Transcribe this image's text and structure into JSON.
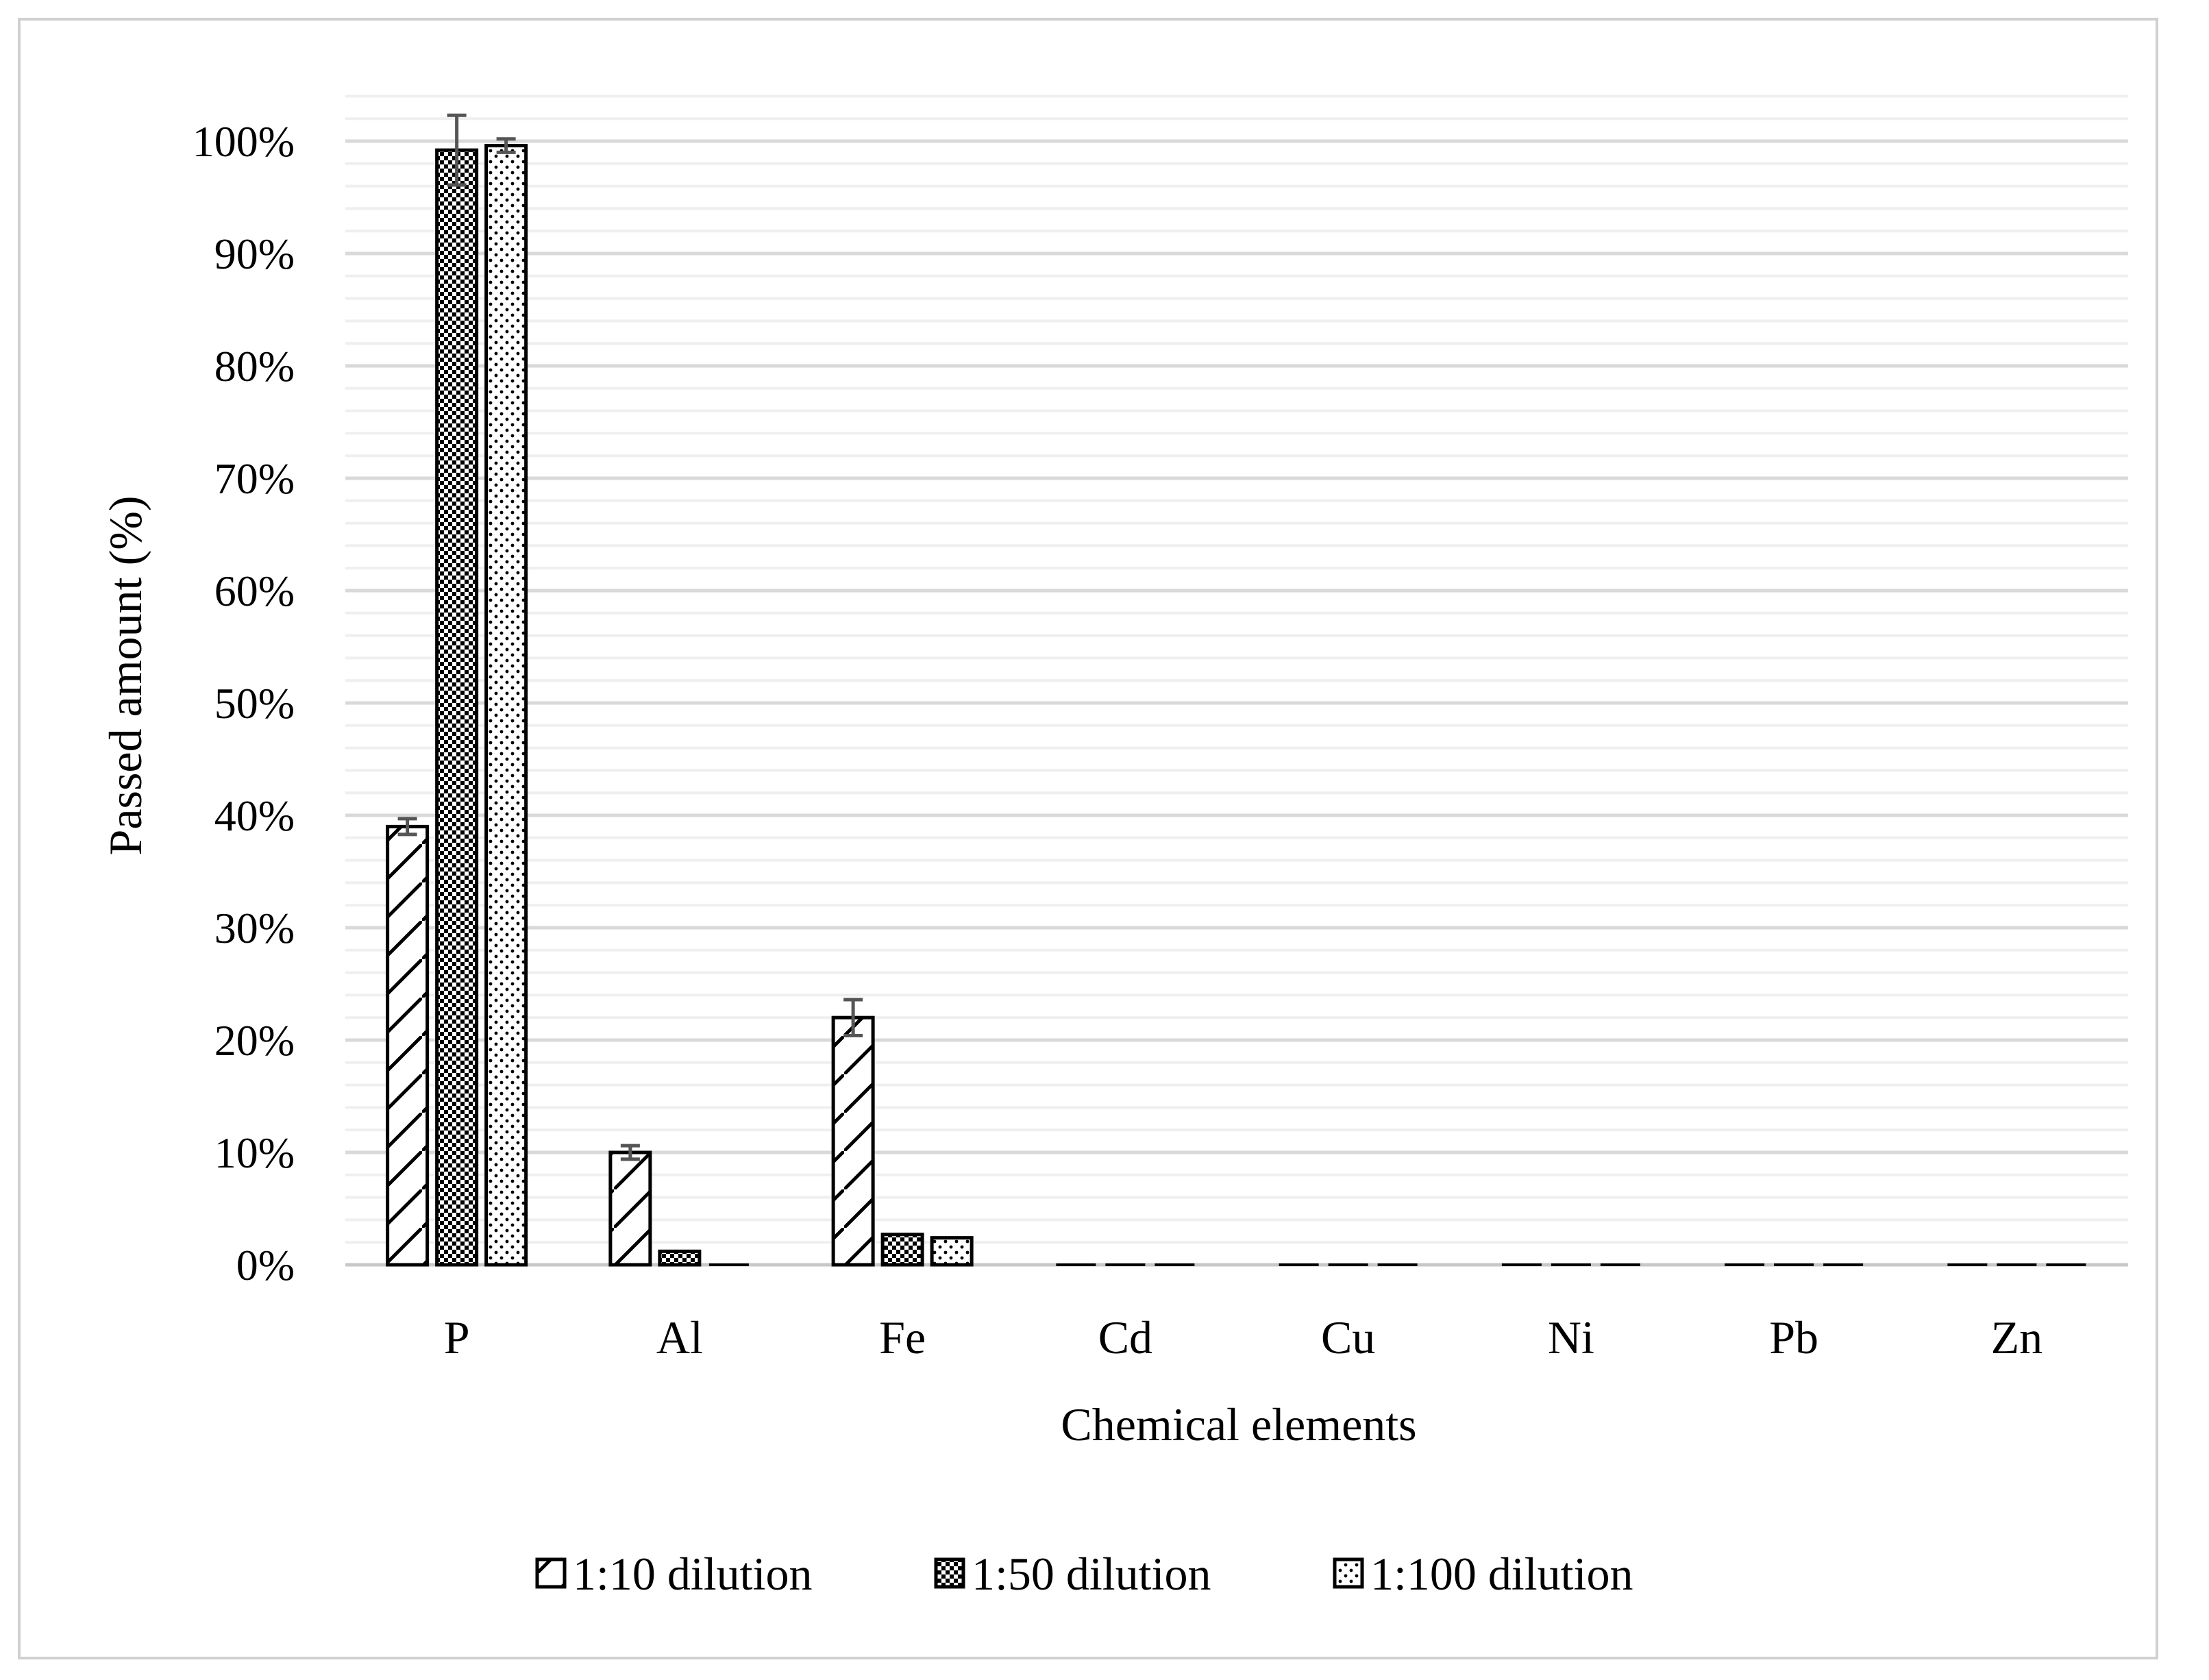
{
  "chart_data": {
    "type": "bar",
    "title": "",
    "xlabel": "Chemical elements",
    "ylabel": "Passed amount (%)",
    "categories": [
      "P",
      "Al",
      "Fe",
      "Cd",
      "Cu",
      "Ni",
      "Pb",
      "Zn"
    ],
    "y_ticks": [
      "0%",
      "10%",
      "20%",
      "30%",
      "40%",
      "50%",
      "60%",
      "70%",
      "80%",
      "90%",
      "100%"
    ],
    "ylim": [
      0,
      104
    ],
    "grid": true,
    "legend_position": "bottom",
    "series": [
      {
        "name": "1:10 dilution",
        "pattern": "diagonal-hatch",
        "values": [
          39,
          10,
          22,
          0,
          0,
          0,
          0,
          0
        ],
        "errors": [
          0.7,
          0.6,
          1.6,
          0,
          0,
          0,
          0,
          0
        ]
      },
      {
        "name": "1:50 dilution",
        "pattern": "dense-checker",
        "values": [
          99.2,
          1.2,
          2.7,
          0,
          0,
          0,
          0,
          0
        ],
        "errors": [
          3.1,
          0,
          0,
          0,
          0,
          0,
          0,
          0
        ]
      },
      {
        "name": "1:100 dilution",
        "pattern": "dots",
        "values": [
          99.6,
          0,
          2.4,
          0,
          0,
          0,
          0,
          0
        ],
        "errors": [
          0.6,
          0,
          0,
          0,
          0,
          0,
          0,
          0
        ]
      }
    ],
    "colors": {
      "bar_fill": "#ffffff",
      "bar_stroke": "#000000",
      "major_grid": "#d9d9d9",
      "minor_grid": "#efefef",
      "error_bar": "#555555"
    }
  }
}
